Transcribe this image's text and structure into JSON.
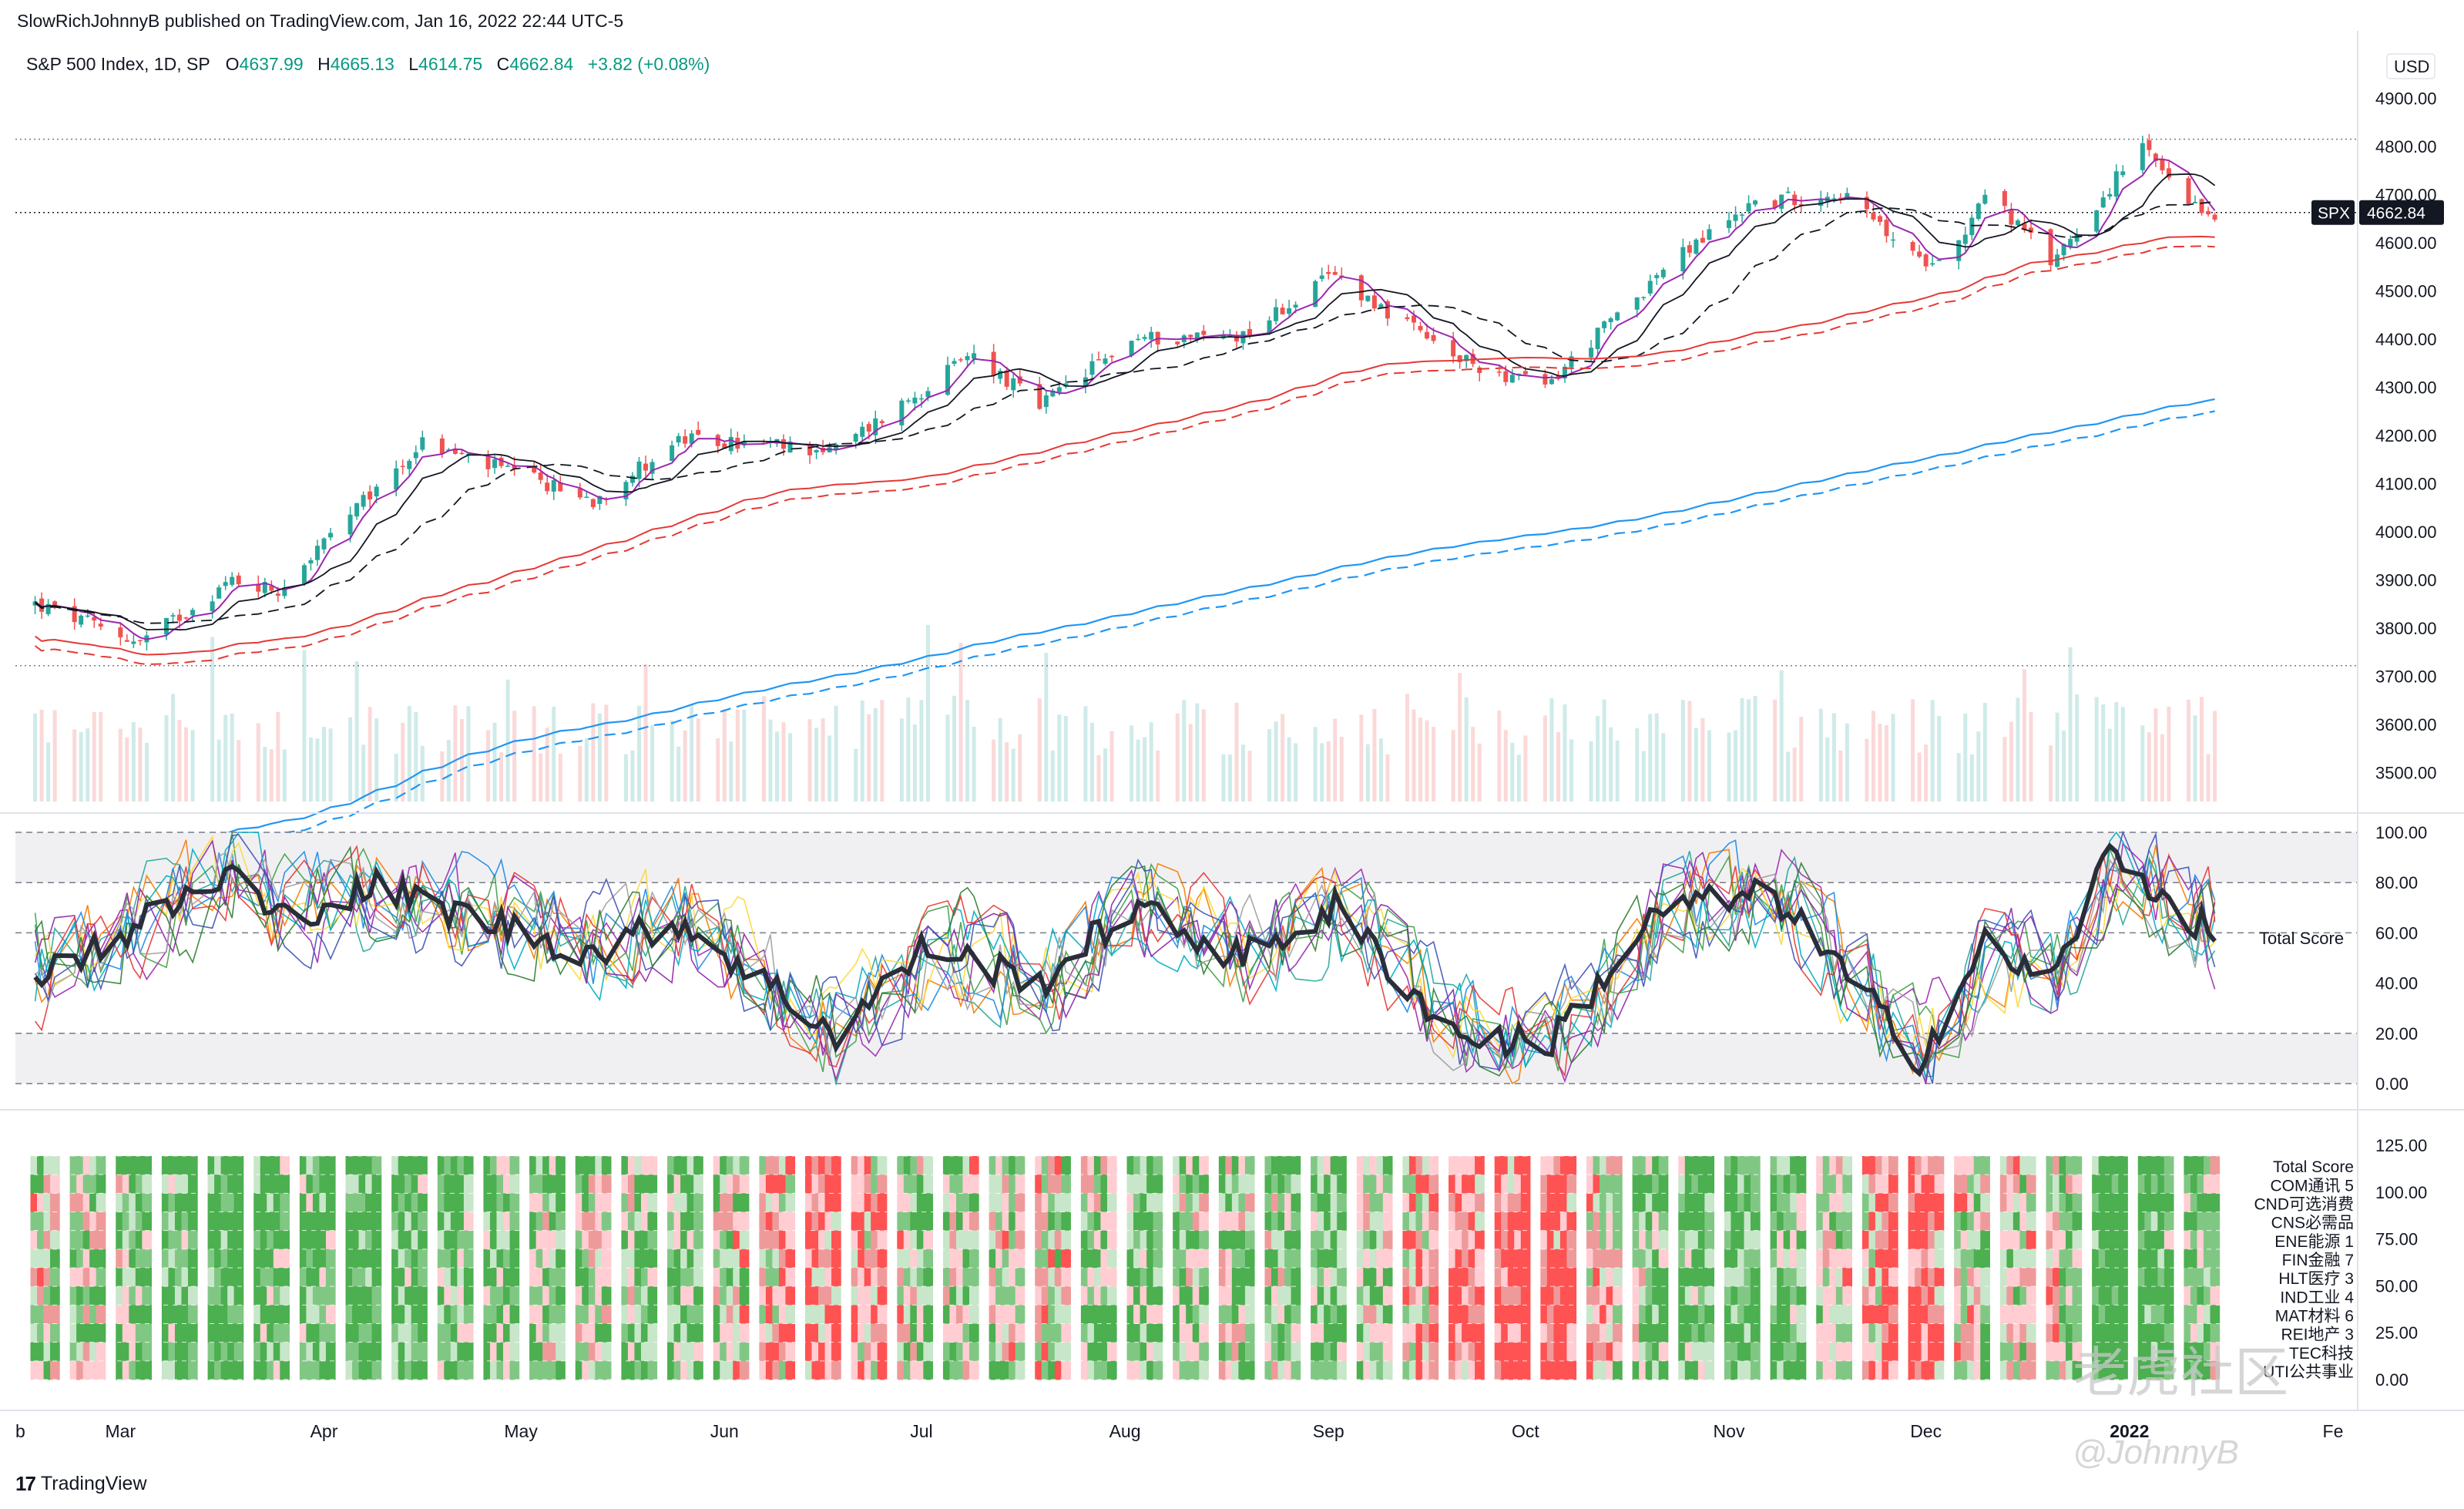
{
  "header": {
    "published_line": "SlowRichJohnnyB published on TradingView.com, Jan 16, 2022 22:44 UTC-5",
    "symbol_line": "S&P 500 Index, 1D, SP",
    "ohlc": {
      "o_label": "O",
      "o": "4637.99",
      "h_label": "H",
      "h": "4665.13",
      "l_label": "L",
      "l": "4614.75",
      "c_label": "C",
      "c": "4662.84",
      "change": "+3.82 (+0.08%)"
    }
  },
  "colors": {
    "up": "#26a69a",
    "down": "#ef5350",
    "ma_black": "#131722",
    "ma_purple": "#9c27b0",
    "ma_red": "#e53935",
    "ma_blue": "#2196f3",
    "score": "#2a2e39",
    "heat_green": "#4caf50",
    "heat_red": "#ff5252"
  },
  "footer": {
    "brand": "TradingView",
    "logo_glyph": "17"
  },
  "watermark": {
    "cn": "老虎社区",
    "user": "@JohnnyB"
  },
  "chart_data": [
    {
      "type": "candlestick",
      "currency": "USD",
      "price_tag": {
        "symbol": "SPX",
        "value": "4662.84"
      },
      "ylim": [
        3440,
        4960
      ],
      "y_ticks": [
        "4900.00",
        "4800.00",
        "4700.00",
        "4600.00",
        "4500.00",
        "4400.00",
        "4300.00",
        "4200.00",
        "4100.00",
        "4000.00",
        "3900.00",
        "3800.00",
        "3700.00",
        "3600.00",
        "3500.00"
      ],
      "x_ticks": [
        "b",
        "Mar",
        "Apr",
        "May",
        "Jun",
        "Jul",
        "Aug",
        "Sep",
        "Oct",
        "Nov",
        "Dec",
        "2022",
        "Fe"
      ],
      "start_date": "2021-02-16",
      "anchors": [
        {
          "x": "2021-02-16",
          "y": 3850
        },
        {
          "x": "2021-03-04",
          "y": 3770
        },
        {
          "x": "2021-03-18",
          "y": 3900
        },
        {
          "x": "2021-03-25",
          "y": 3880
        },
        {
          "x": "2021-04-16",
          "y": 4185
        },
        {
          "x": "2021-05-12",
          "y": 4065
        },
        {
          "x": "2021-05-25",
          "y": 4190
        },
        {
          "x": "2021-06-18",
          "y": 4170
        },
        {
          "x": "2021-07-09",
          "y": 4370
        },
        {
          "x": "2021-07-19",
          "y": 4260
        },
        {
          "x": "2021-08-02",
          "y": 4400
        },
        {
          "x": "2021-08-19",
          "y": 4410
        },
        {
          "x": "2021-09-02",
          "y": 4535
        },
        {
          "x": "2021-09-20",
          "y": 4360
        },
        {
          "x": "2021-10-04",
          "y": 4300
        },
        {
          "x": "2021-10-22",
          "y": 4545
        },
        {
          "x": "2021-11-04",
          "y": 4680
        },
        {
          "x": "2021-11-18",
          "y": 4705
        },
        {
          "x": "2021-11-30",
          "y": 4560
        },
        {
          "x": "2021-12-06",
          "y": 4600
        },
        {
          "x": "2021-12-10",
          "y": 4710
        },
        {
          "x": "2021-12-20",
          "y": 4560
        },
        {
          "x": "2022-01-03",
          "y": 4800
        },
        {
          "x": "2022-01-10",
          "y": 4670
        },
        {
          "x": "2022-01-14",
          "y": 4662
        }
      ]
    },
    {
      "type": "line",
      "name": "Total Score",
      "axis_label": "Total Score",
      "ylim": [
        0,
        100
      ],
      "y_ticks": [
        "100.00",
        "80.00",
        "60.00",
        "40.00",
        "20.00",
        "0.00"
      ],
      "anchors": [
        {
          "x": "2021-02-16",
          "y": 45
        },
        {
          "x": "2021-02-26",
          "y": 55
        },
        {
          "x": "2021-03-19",
          "y": 85
        },
        {
          "x": "2021-03-24",
          "y": 65
        },
        {
          "x": "2021-04-09",
          "y": 78
        },
        {
          "x": "2021-05-12",
          "y": 52
        },
        {
          "x": "2021-05-25",
          "y": 65
        },
        {
          "x": "2021-06-18",
          "y": 20
        },
        {
          "x": "2021-07-02",
          "y": 55
        },
        {
          "x": "2021-07-19",
          "y": 40
        },
        {
          "x": "2021-08-02",
          "y": 70
        },
        {
          "x": "2021-08-19",
          "y": 50
        },
        {
          "x": "2021-09-02",
          "y": 70
        },
        {
          "x": "2021-09-20",
          "y": 20
        },
        {
          "x": "2021-10-04",
          "y": 15
        },
        {
          "x": "2021-10-22",
          "y": 70
        },
        {
          "x": "2021-11-08",
          "y": 75
        },
        {
          "x": "2021-11-30",
          "y": 10
        },
        {
          "x": "2021-12-10",
          "y": 55
        },
        {
          "x": "2021-12-20",
          "y": 40
        },
        {
          "x": "2021-12-29",
          "y": 92
        },
        {
          "x": "2022-01-14",
          "y": 58
        }
      ]
    },
    {
      "type": "heatmap",
      "ylim": [
        0,
        125
      ],
      "y_ticks": [
        "125.00",
        "100.00",
        "75.00",
        "50.00",
        "25.00",
        "0.00"
      ],
      "rows": [
        "Total Score",
        "COM通讯 5",
        "CND可选消费",
        "CNS必需品",
        "ENE能源 1",
        "FIN金融 7",
        "HLT医疗 3",
        "IND工业 4",
        "MAT材料 6",
        "REI地产 3",
        "TEC科技",
        "UTI公共事业"
      ]
    }
  ]
}
